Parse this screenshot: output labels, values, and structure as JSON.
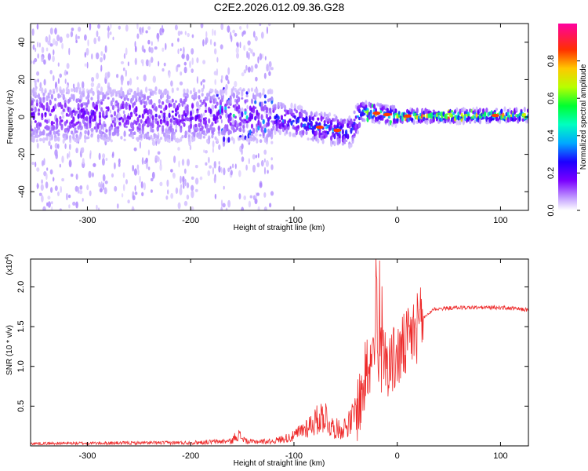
{
  "chart_data": [
    {
      "type": "heatmap",
      "title": "C2E2.2026.012.09.36.G28",
      "xlabel": "Height of straight line (km)",
      "ylabel": "Frequency (Hz)",
      "xlim": [
        -355,
        127
      ],
      "ylim": [
        -50,
        50
      ],
      "xticks": [
        -300,
        -200,
        -100,
        0,
        100
      ],
      "yticks": [
        -40,
        -20,
        0,
        20,
        40
      ],
      "colorbar": {
        "label": "Normalized spectral amplitude",
        "range": [
          0,
          1
        ],
        "ticks": [
          "0.0",
          "0.2",
          "0.4",
          "0.6",
          "0.8"
        ],
        "colors": [
          "#ffffff",
          "#b08cff",
          "#7a00ff",
          "#1d00ff",
          "#00c8ff",
          "#00ff55",
          "#c8ff00",
          "#ffbf00",
          "#ff3300",
          "#ff00a0"
        ]
      },
      "band_center": [
        {
          "x": -355,
          "f": 1
        },
        {
          "x": -200,
          "f": 1
        },
        {
          "x": -150,
          "f": 1
        },
        {
          "x": -120,
          "f": 0
        },
        {
          "x": -100,
          "f": -2
        },
        {
          "x": -80,
          "f": -5
        },
        {
          "x": -60,
          "f": -7
        },
        {
          "x": -45,
          "f": -8
        },
        {
          "x": -35,
          "f": 3
        },
        {
          "x": -20,
          "f": 2
        },
        {
          "x": 0,
          "f": 0.5
        },
        {
          "x": 50,
          "f": 0.5
        },
        {
          "x": 127,
          "f": 1
        }
      ]
    },
    {
      "type": "line",
      "xlabel": "Height of straight line (km)",
      "ylabel": "SNR (10 * v/v)",
      "yscale_label": "(x10",
      "yscale_exp": "4",
      "xlim": [
        -355,
        127
      ],
      "ylim": [
        0,
        2.35
      ],
      "xticks": [
        -300,
        -200,
        -100,
        0,
        100
      ],
      "yticks": [
        "0.5",
        "1.0",
        "1.5",
        "2.0"
      ],
      "color": "#ee2a2a",
      "envelope": [
        {
          "x": -355,
          "y": 0.03
        },
        {
          "x": -200,
          "y": 0.04
        },
        {
          "x": -160,
          "y": 0.06
        },
        {
          "x": -155,
          "y": 0.15
        },
        {
          "x": -145,
          "y": 0.05
        },
        {
          "x": -120,
          "y": 0.06
        },
        {
          "x": -100,
          "y": 0.12
        },
        {
          "x": -90,
          "y": 0.22
        },
        {
          "x": -80,
          "y": 0.3
        },
        {
          "x": -70,
          "y": 0.4
        },
        {
          "x": -65,
          "y": 0.25
        },
        {
          "x": -55,
          "y": 0.2
        },
        {
          "x": -45,
          "y": 0.3
        },
        {
          "x": -35,
          "y": 0.6
        },
        {
          "x": -28,
          "y": 1.05
        },
        {
          "x": -22,
          "y": 1.2
        },
        {
          "x": -15,
          "y": 1.1
        },
        {
          "x": -5,
          "y": 1.05
        },
        {
          "x": 5,
          "y": 1.2
        },
        {
          "x": 15,
          "y": 1.4
        },
        {
          "x": 25,
          "y": 1.6
        },
        {
          "x": 35,
          "y": 1.72
        },
        {
          "x": 60,
          "y": 1.74
        },
        {
          "x": 100,
          "y": 1.74
        },
        {
          "x": 127,
          "y": 1.71
        }
      ]
    }
  ]
}
